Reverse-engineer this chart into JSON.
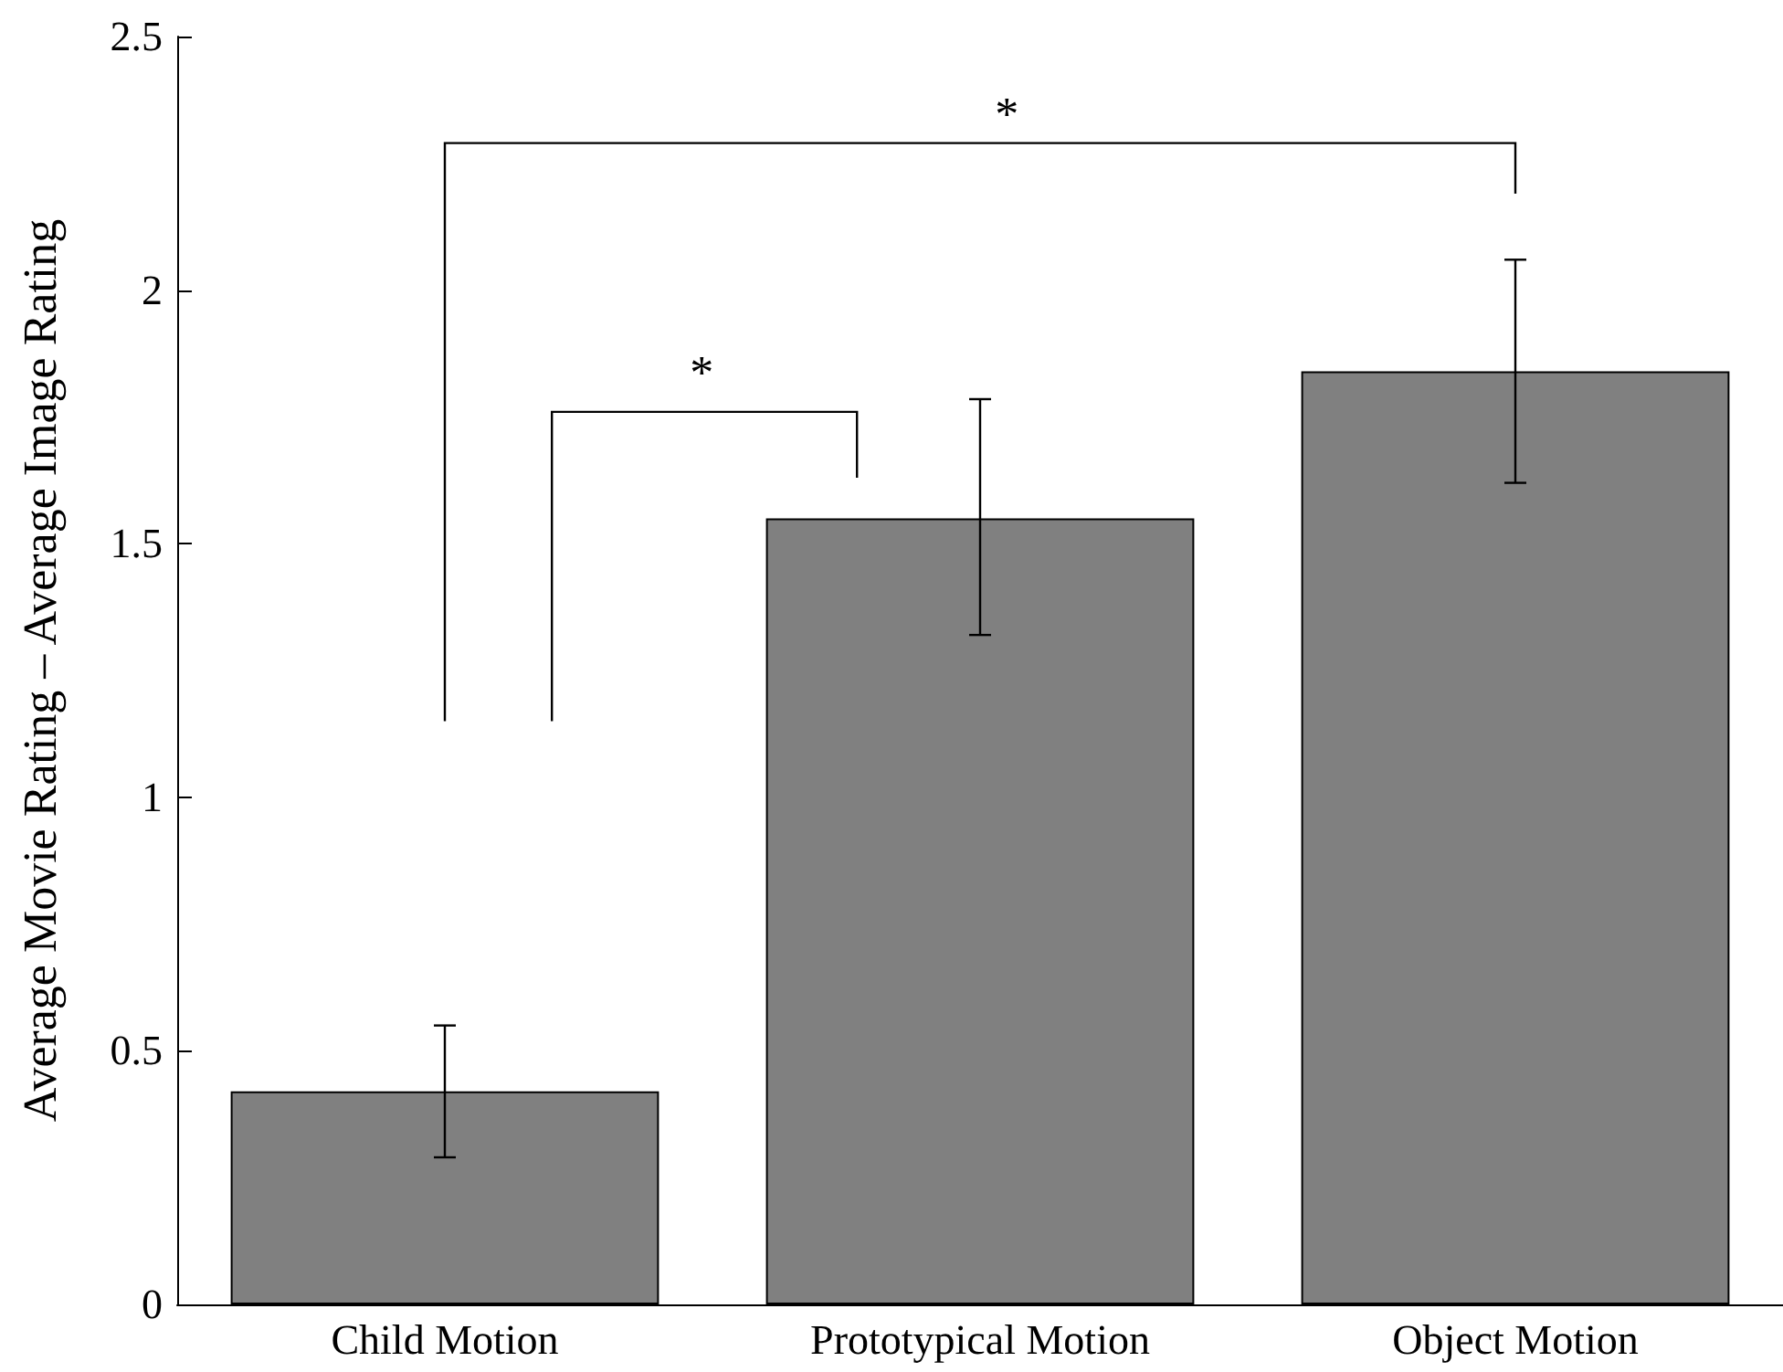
{
  "chart_data": {
    "type": "bar",
    "categories": [
      "Child Motion",
      "Prototypical Motion",
      "Object Motion"
    ],
    "values": [
      0.42,
      1.55,
      1.84
    ],
    "errors": [
      [
        0.29,
        0.55
      ],
      [
        1.32,
        1.785
      ],
      [
        1.62,
        2.06
      ]
    ],
    "color": "#808080",
    "ylabel": "Average Movie Rating – Average Image Rating",
    "ylim": [
      0,
      2.5
    ],
    "yticks": [
      0,
      0.5,
      1,
      1.5,
      2,
      2.5
    ],
    "grid": false,
    "annotations": [
      "*",
      "*"
    ]
  }
}
